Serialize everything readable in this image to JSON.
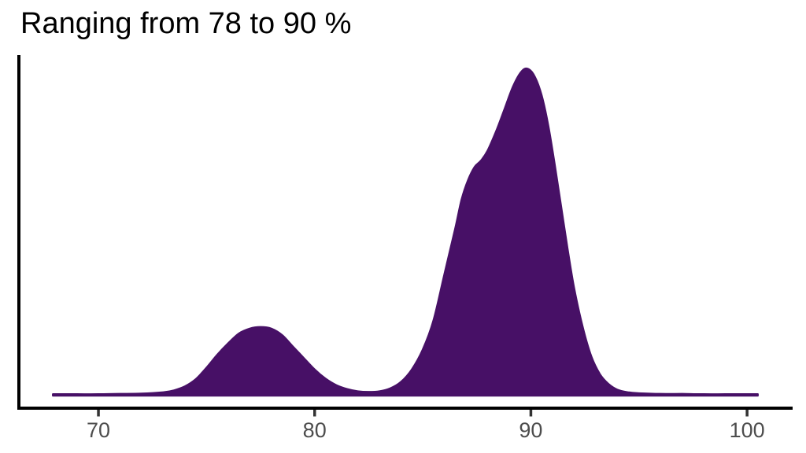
{
  "title": "Ranging from 78 to 90 %",
  "colors": {
    "density_fill": "#471066",
    "density_stroke": "#471066",
    "axis_line": "#000000",
    "tick_mark": "#333333",
    "tick_label": "#4d4d4d",
    "background": "#ffffff",
    "title_text": "#000000"
  },
  "chart_data": {
    "type": "area",
    "subtype": "density",
    "title": "Ranging from 78 to 90 %",
    "xlabel": "",
    "ylabel": "",
    "xlim": [
      66.3,
      102.1
    ],
    "ylim": [
      0,
      1.08
    ],
    "grid": false,
    "legend": "none",
    "x_ticks": [
      70,
      80,
      90,
      100
    ],
    "modes": [
      {
        "x": 78,
        "relative_height": 0.21
      },
      {
        "x": 87.5,
        "relative_height": 0.72,
        "note": "shoulder"
      },
      {
        "x": 90,
        "relative_height": 1.0
      }
    ],
    "series": [
      {
        "name": "density",
        "points": [
          [
            67.9,
            0.004
          ],
          [
            69,
            0.004
          ],
          [
            70,
            0.004
          ],
          [
            71,
            0.005
          ],
          [
            72,
            0.006
          ],
          [
            73,
            0.01
          ],
          [
            73.5,
            0.016
          ],
          [
            74,
            0.028
          ],
          [
            74.5,
            0.05
          ],
          [
            75,
            0.085
          ],
          [
            75.5,
            0.125
          ],
          [
            76,
            0.16
          ],
          [
            76.5,
            0.19
          ],
          [
            77,
            0.205
          ],
          [
            77.5,
            0.21
          ],
          [
            78,
            0.205
          ],
          [
            78.5,
            0.185
          ],
          [
            79,
            0.15
          ],
          [
            79.5,
            0.115
          ],
          [
            80,
            0.08
          ],
          [
            80.5,
            0.052
          ],
          [
            81,
            0.032
          ],
          [
            81.5,
            0.02
          ],
          [
            82,
            0.013
          ],
          [
            82.5,
            0.011
          ],
          [
            83,
            0.013
          ],
          [
            83.5,
            0.022
          ],
          [
            84,
            0.042
          ],
          [
            84.5,
            0.08
          ],
          [
            85,
            0.14
          ],
          [
            85.5,
            0.23
          ],
          [
            86,
            0.37
          ],
          [
            86.5,
            0.51
          ],
          [
            86.8,
            0.6
          ],
          [
            87.1,
            0.66
          ],
          [
            87.4,
            0.7
          ],
          [
            87.7,
            0.72
          ],
          [
            88,
            0.75
          ],
          [
            88.4,
            0.81
          ],
          [
            88.8,
            0.88
          ],
          [
            89.2,
            0.95
          ],
          [
            89.6,
            0.995
          ],
          [
            89.9,
            1.0
          ],
          [
            90.2,
            0.975
          ],
          [
            90.5,
            0.92
          ],
          [
            90.8,
            0.83
          ],
          [
            91.1,
            0.71
          ],
          [
            91.4,
            0.58
          ],
          [
            91.7,
            0.45
          ],
          [
            92,
            0.33
          ],
          [
            92.4,
            0.21
          ],
          [
            92.8,
            0.12
          ],
          [
            93.2,
            0.065
          ],
          [
            93.6,
            0.035
          ],
          [
            94,
            0.018
          ],
          [
            94.5,
            0.01
          ],
          [
            95,
            0.007
          ],
          [
            96,
            0.005
          ],
          [
            97,
            0.005
          ],
          [
            98,
            0.004
          ],
          [
            99,
            0.004
          ],
          [
            100,
            0.004
          ],
          [
            100.5,
            0.004
          ]
        ]
      }
    ]
  }
}
